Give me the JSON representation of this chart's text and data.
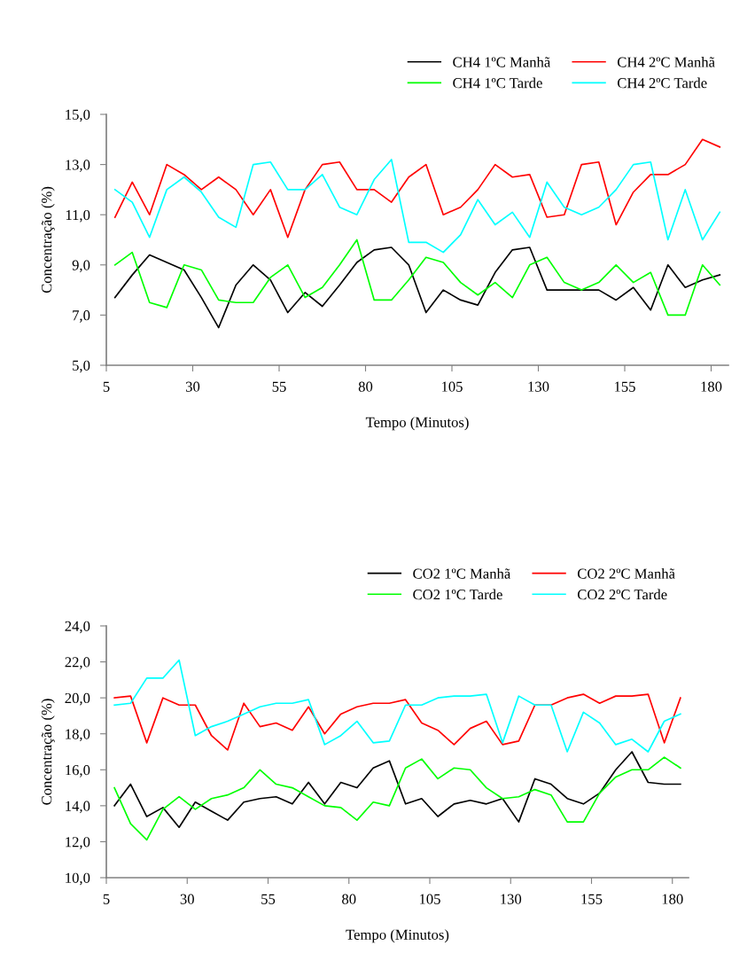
{
  "chart_data": [
    {
      "type": "line",
      "xlabel": "Tempo (Minutos)",
      "ylabel": "Concentração (%)",
      "legend": "top",
      "grid": false,
      "marker": "none",
      "line_style": "solid",
      "x": [
        7.5,
        12.5,
        17.5,
        22.5,
        27.5,
        32.5,
        37.5,
        42.5,
        47.5,
        52.5,
        57.5,
        62.5,
        67.5,
        72.5,
        77.5,
        82.5,
        87.5,
        92.5,
        97.5,
        102.5,
        107.5,
        112.5,
        117.5,
        122.5,
        127.5,
        132.5,
        137.5,
        142.5,
        147.5,
        152.5,
        157.5,
        162.5,
        167.5,
        172.5,
        177.5,
        182.5
      ],
      "xlim": [
        5,
        185
      ],
      "xticks": [
        5,
        30,
        55,
        80,
        105,
        130,
        155,
        180
      ],
      "ylim": [
        5,
        15
      ],
      "yticks": [
        {
          "value": 5,
          "label": "5,0"
        },
        {
          "value": 7,
          "label": "7,0"
        },
        {
          "value": 9,
          "label": "9,0"
        },
        {
          "value": 11,
          "label": "11,0"
        },
        {
          "value": 13,
          "label": "13,0"
        },
        {
          "value": 15,
          "label": "15,0"
        }
      ],
      "series": [
        {
          "name": "CH4 1ºC Manhã",
          "color": "#000000",
          "values": [
            7.7,
            8.6,
            9.4,
            9.1,
            8.8,
            7.7,
            6.5,
            8.2,
            9.0,
            8.4,
            7.1,
            7.9,
            7.35,
            8.2,
            9.1,
            9.6,
            9.7,
            9.0,
            7.1,
            8.0,
            7.6,
            7.4,
            8.7,
            9.6,
            9.7,
            8.0,
            8.0,
            8.0,
            8.0,
            7.6,
            8.1,
            7.2,
            9.0,
            8.1,
            8.4,
            8.6
          ]
        },
        {
          "name": "CH4 2ºC Manhã",
          "color": "#ff0000",
          "values": [
            10.9,
            12.3,
            11.0,
            13.0,
            12.6,
            12.0,
            12.5,
            12.0,
            11.0,
            12.0,
            10.1,
            12.0,
            13.0,
            13.1,
            12.0,
            12.0,
            11.5,
            12.5,
            13.0,
            11.0,
            11.3,
            12.0,
            13.0,
            12.5,
            12.6,
            10.9,
            11.0,
            13.0,
            13.1,
            10.6,
            11.9,
            12.6,
            12.6,
            13.0,
            14.0,
            13.7
          ]
        },
        {
          "name": "CH4 1ºC Tarde",
          "color": "#00ff00",
          "values": [
            9.0,
            9.5,
            7.5,
            7.3,
            9.0,
            8.8,
            7.6,
            7.5,
            7.5,
            8.5,
            9.0,
            7.7,
            8.1,
            9.0,
            10.0,
            7.6,
            7.6,
            8.4,
            9.3,
            9.1,
            8.3,
            7.8,
            8.3,
            7.7,
            9.0,
            9.3,
            8.3,
            8.0,
            8.3,
            9.0,
            8.3,
            8.7,
            7.0,
            7.0,
            9.0,
            8.2
          ]
        },
        {
          "name": "CH4 2ºC Tarde",
          "color": "#00ffff",
          "values": [
            12.0,
            11.5,
            10.1,
            12.0,
            12.5,
            11.9,
            10.9,
            10.5,
            13.0,
            13.1,
            12.0,
            12.0,
            12.6,
            11.3,
            11.0,
            12.4,
            13.2,
            9.9,
            9.9,
            9.5,
            10.2,
            11.6,
            10.6,
            11.1,
            10.1,
            12.3,
            11.3,
            11.0,
            11.3,
            12.0,
            13.0,
            13.1,
            10.0,
            12.0,
            10.0,
            11.1
          ]
        }
      ]
    },
    {
      "type": "line",
      "xlabel": "Tempo (Minutos)",
      "ylabel": "Concentração (%)",
      "legend": "top",
      "grid": false,
      "marker": "none",
      "line_style": "solid",
      "x": [
        7.5,
        12.5,
        17.5,
        22.5,
        27.5,
        32.5,
        37.5,
        42.5,
        47.5,
        52.5,
        57.5,
        62.5,
        67.5,
        72.5,
        77.5,
        82.5,
        87.5,
        92.5,
        97.5,
        102.5,
        107.5,
        112.5,
        117.5,
        122.5,
        127.5,
        132.5,
        137.5,
        142.5,
        147.5,
        152.5,
        157.5,
        162.5,
        167.5,
        172.5,
        177.5,
        182.5
      ],
      "xlim": [
        5,
        185
      ],
      "xticks": [
        5,
        30,
        55,
        80,
        105,
        130,
        155,
        180
      ],
      "ylim": [
        10,
        24
      ],
      "yticks": [
        {
          "value": 10,
          "label": "10,0"
        },
        {
          "value": 12,
          "label": "12,0"
        },
        {
          "value": 14,
          "label": "14,0"
        },
        {
          "value": 16,
          "label": "16,0"
        },
        {
          "value": 18,
          "label": "18,0"
        },
        {
          "value": 20,
          "label": "20,0"
        },
        {
          "value": 22,
          "label": "22,0"
        },
        {
          "value": 24,
          "label": "24,0"
        }
      ],
      "series": [
        {
          "name": "CO2 1ºC Manhã",
          "color": "#000000",
          "values": [
            14.0,
            15.2,
            13.4,
            13.9,
            12.8,
            14.2,
            13.7,
            13.2,
            14.2,
            14.4,
            14.5,
            14.1,
            15.3,
            14.1,
            15.3,
            15.0,
            16.1,
            16.5,
            14.1,
            14.4,
            13.4,
            14.1,
            14.3,
            14.1,
            14.4,
            13.1,
            15.5,
            15.2,
            14.4,
            14.1,
            14.7,
            16.0,
            17.0,
            15.3,
            15.2,
            15.2
          ]
        },
        {
          "name": "CO2 2ºC Manhã",
          "color": "#ff0000",
          "values": [
            20.0,
            20.1,
            17.5,
            20.0,
            19.6,
            19.6,
            17.9,
            17.1,
            19.7,
            18.4,
            18.6,
            18.2,
            19.5,
            18.0,
            19.1,
            19.5,
            19.7,
            19.7,
            19.9,
            18.6,
            18.2,
            17.4,
            18.3,
            18.7,
            17.4,
            17.6,
            19.6,
            19.6,
            20.0,
            20.2,
            19.7,
            20.1,
            20.1,
            20.2,
            17.5,
            20.0
          ]
        },
        {
          "name": "CO2 1ºC Tarde",
          "color": "#00ff00",
          "values": [
            15.0,
            13.0,
            12.1,
            13.8,
            14.5,
            13.8,
            14.4,
            14.6,
            15.0,
            16.0,
            15.2,
            15.0,
            14.5,
            14.0,
            13.9,
            13.2,
            14.2,
            14.0,
            16.1,
            16.6,
            15.5,
            16.1,
            16.0,
            15.0,
            14.4,
            14.5,
            14.9,
            14.6,
            13.1,
            13.1,
            14.7,
            15.6,
            16.0,
            16.0,
            16.7,
            16.1
          ]
        },
        {
          "name": "CO2 2ºC Tarde",
          "color": "#00ffff",
          "values": [
            19.6,
            19.7,
            21.1,
            21.1,
            22.1,
            17.9,
            18.4,
            18.7,
            19.1,
            19.5,
            19.7,
            19.7,
            19.9,
            17.4,
            17.9,
            18.7,
            17.5,
            17.6,
            19.6,
            19.6,
            20.0,
            20.1,
            20.1,
            20.2,
            17.5,
            20.1,
            19.6,
            19.6,
            17.0,
            19.2,
            18.6,
            17.4,
            17.7,
            17.0,
            18.7,
            19.1
          ]
        }
      ]
    }
  ]
}
